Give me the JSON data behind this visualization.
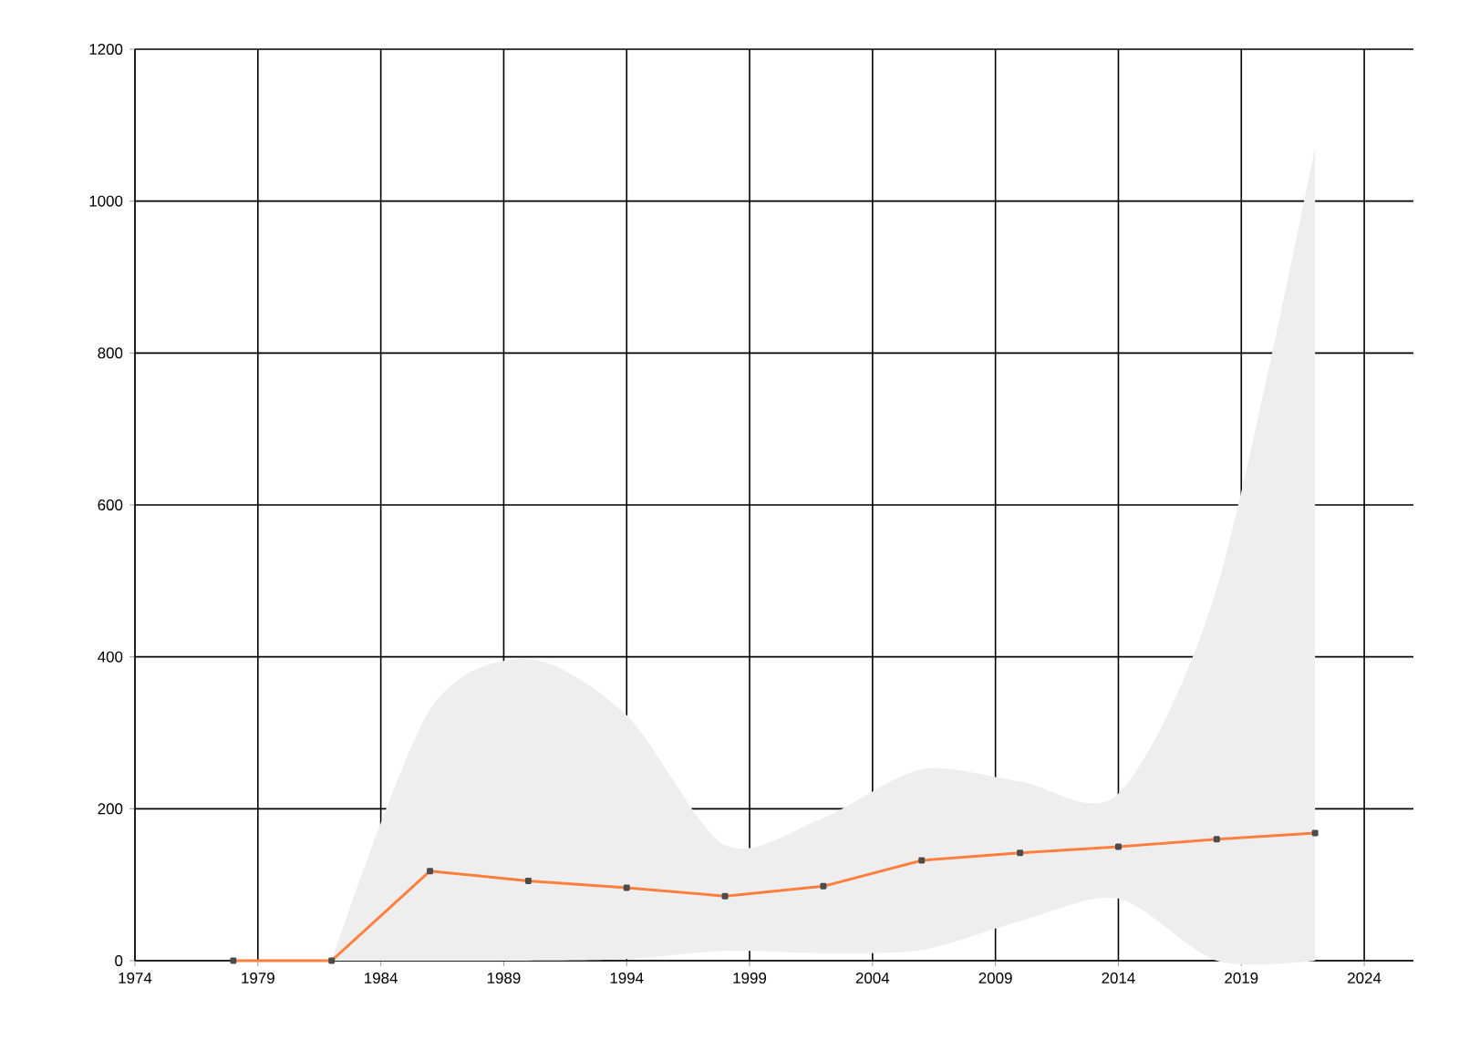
{
  "chart_data": {
    "type": "line",
    "x": [
      1978,
      1982,
      1986,
      1990,
      1994,
      1998,
      2002,
      2006,
      2010,
      2014,
      2018,
      2022
    ],
    "series": [
      {
        "color": "#ff7f3f",
        "values": [
          0,
          0,
          118,
          105,
          96,
          85,
          98,
          132,
          142,
          150,
          160,
          168
        ],
        "lower": [
          null,
          0,
          0,
          0,
          2,
          13,
          10,
          14,
          52,
          82,
          0,
          0
        ],
        "upper": [
          null,
          0,
          331,
          397,
          323,
          152,
          188,
          252,
          236,
          220,
          490,
          1070
        ]
      }
    ],
    "xlim": [
      1974,
      2026
    ],
    "ylim": [
      0,
      1200
    ],
    "xticks": [
      1974,
      1979,
      1984,
      1989,
      1994,
      1999,
      2004,
      2009,
      2014,
      2019,
      2024
    ],
    "yticks": [
      0,
      200,
      400,
      600,
      800,
      1000,
      1200
    ],
    "grid": true,
    "marker": "square",
    "line_style": "solid"
  }
}
